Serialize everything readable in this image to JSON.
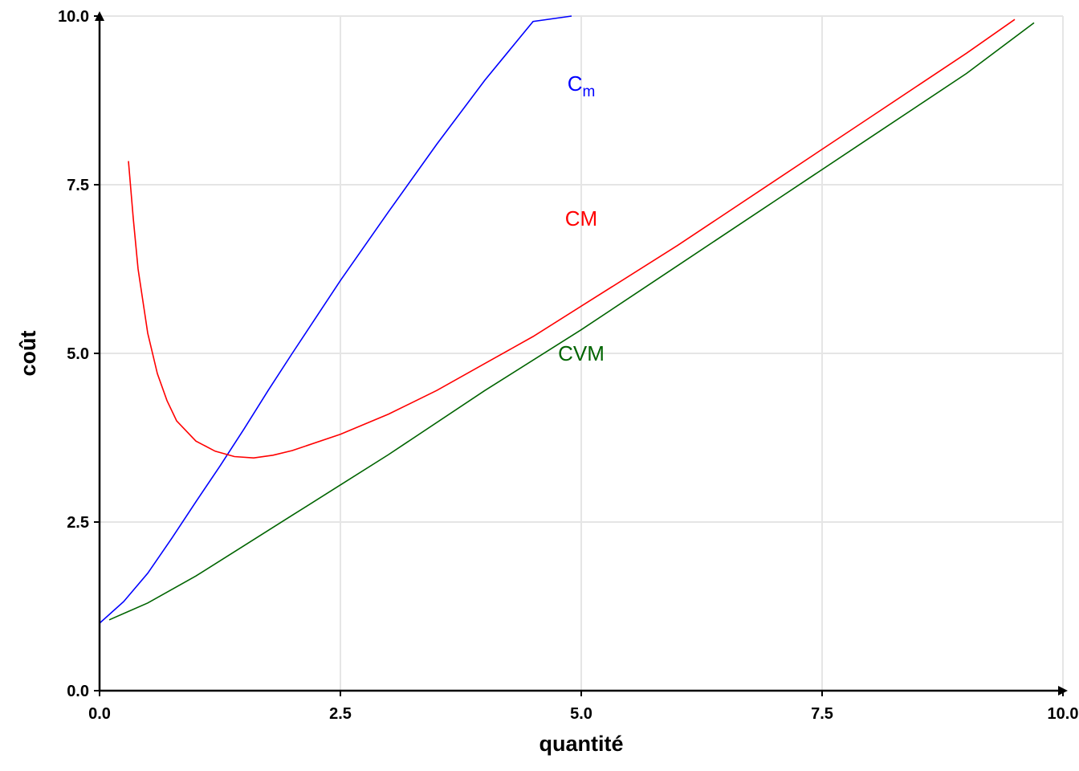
{
  "chart_data": {
    "type": "line",
    "title": "",
    "xlabel": "quantité",
    "ylabel": "coût",
    "xlim": [
      0,
      10
    ],
    "ylim": [
      0,
      10
    ],
    "xticks": [
      "0.0",
      "2.5",
      "5.0",
      "7.5",
      "10.0"
    ],
    "yticks": [
      "0.0",
      "2.5",
      "5.0",
      "7.5",
      "10.0"
    ],
    "grid": true,
    "axis_arrows": true,
    "series": [
      {
        "name": "Cm",
        "color": "#0000ff",
        "x": [
          0.0,
          0.25,
          0.5,
          0.75,
          1.0,
          1.25,
          1.5,
          1.75,
          2.0,
          2.5,
          3.0,
          3.5,
          4.0,
          4.5,
          4.9
        ],
        "y": [
          1.0,
          1.32,
          1.74,
          2.26,
          2.8,
          3.33,
          3.88,
          4.45,
          5.0,
          6.08,
          7.1,
          8.1,
          9.05,
          9.92,
          10.0
        ]
      },
      {
        "name": "CM",
        "color": "#ff0000",
        "x": [
          0.3,
          0.35,
          0.4,
          0.5,
          0.6,
          0.7,
          0.8,
          1.0,
          1.2,
          1.4,
          1.6,
          1.8,
          2.0,
          2.5,
          3.0,
          3.5,
          4.0,
          4.5,
          5.0,
          6.0,
          7.0,
          8.0,
          9.0,
          9.5
        ],
        "y": [
          7.85,
          7.0,
          6.25,
          5.3,
          4.7,
          4.3,
          4.0,
          3.7,
          3.55,
          3.47,
          3.45,
          3.49,
          3.56,
          3.8,
          4.1,
          4.45,
          4.85,
          5.25,
          5.7,
          6.6,
          7.55,
          8.5,
          9.45,
          9.95
        ]
      },
      {
        "name": "CVM",
        "color": "#006400",
        "x": [
          0.1,
          0.5,
          1.0,
          1.5,
          2.0,
          2.5,
          3.0,
          4.0,
          5.0,
          6.0,
          7.0,
          8.0,
          9.0,
          9.7
        ],
        "y": [
          1.05,
          1.3,
          1.7,
          2.15,
          2.6,
          3.05,
          3.5,
          4.45,
          5.35,
          6.3,
          7.25,
          8.2,
          9.15,
          9.9
        ]
      }
    ],
    "annotations": [
      {
        "text": "C",
        "subscript": "m",
        "x": 5.0,
        "y": 9.0,
        "color": "#0000ff"
      },
      {
        "text": "CM",
        "subscript": "",
        "x": 5.0,
        "y": 7.0,
        "color": "#ff0000"
      },
      {
        "text": "CVM",
        "subscript": "",
        "x": 5.0,
        "y": 5.0,
        "color": "#006400"
      }
    ]
  }
}
